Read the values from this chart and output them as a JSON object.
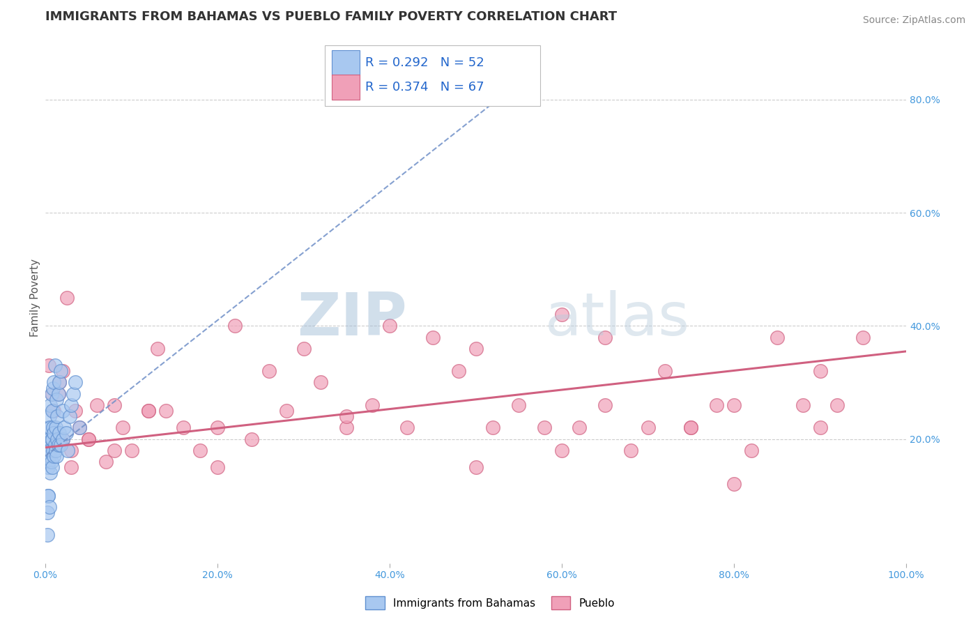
{
  "title": "IMMIGRANTS FROM BAHAMAS VS PUEBLO FAMILY POVERTY CORRELATION CHART",
  "source": "Source: ZipAtlas.com",
  "xlabel": "",
  "ylabel": "Family Poverty",
  "xlim": [
    0,
    1
  ],
  "ylim": [
    -0.02,
    0.92
  ],
  "x_tick_labels": [
    "0.0%",
    "20.0%",
    "40.0%",
    "60.0%",
    "80.0%",
    "100.0%"
  ],
  "x_tick_vals": [
    0,
    0.2,
    0.4,
    0.6,
    0.8,
    1.0
  ],
  "y_tick_labels": [
    "20.0%",
    "40.0%",
    "60.0%",
    "80.0%"
  ],
  "y_tick_vals": [
    0.2,
    0.4,
    0.6,
    0.8
  ],
  "legend1_R": "0.292",
  "legend1_N": "52",
  "legend2_R": "0.374",
  "legend2_N": "67",
  "legend1_label": "Immigrants from Bahamas",
  "legend2_label": "Pueblo",
  "blue_color": "#A8C8F0",
  "pink_color": "#F0A0B8",
  "blue_edge": "#6090D0",
  "pink_edge": "#D06080",
  "blue_trend_color": "#7090C8",
  "pink_trend_color": "#D06080",
  "watermark": "ZIPatlas",
  "watermark_color": "#C8D8EE",
  "bg_color": "#FFFFFF",
  "grid_color": "#CCCCCC",
  "blue_scatter_x": [
    0.002,
    0.003,
    0.003,
    0.004,
    0.004,
    0.004,
    0.005,
    0.005,
    0.005,
    0.006,
    0.006,
    0.006,
    0.006,
    0.007,
    0.007,
    0.007,
    0.008,
    0.008,
    0.008,
    0.009,
    0.009,
    0.009,
    0.01,
    0.01,
    0.01,
    0.011,
    0.011,
    0.012,
    0.012,
    0.013,
    0.013,
    0.014,
    0.014,
    0.015,
    0.015,
    0.016,
    0.016,
    0.018,
    0.018,
    0.02,
    0.02,
    0.022,
    0.024,
    0.026,
    0.028,
    0.03,
    0.032,
    0.035,
    0.04,
    0.002,
    0.003,
    0.005
  ],
  "blue_scatter_y": [
    0.03,
    0.1,
    0.15,
    0.16,
    0.18,
    0.22,
    0.17,
    0.2,
    0.24,
    0.14,
    0.18,
    0.22,
    0.26,
    0.16,
    0.2,
    0.28,
    0.15,
    0.2,
    0.25,
    0.18,
    0.22,
    0.29,
    0.17,
    0.21,
    0.3,
    0.19,
    0.33,
    0.18,
    0.22,
    0.17,
    0.27,
    0.2,
    0.24,
    0.19,
    0.28,
    0.21,
    0.3,
    0.19,
    0.32,
    0.2,
    0.25,
    0.22,
    0.21,
    0.18,
    0.24,
    0.26,
    0.28,
    0.3,
    0.22,
    0.07,
    0.1,
    0.08
  ],
  "pink_scatter_x": [
    0.004,
    0.008,
    0.012,
    0.016,
    0.02,
    0.025,
    0.03,
    0.035,
    0.04,
    0.05,
    0.06,
    0.07,
    0.08,
    0.09,
    0.1,
    0.12,
    0.13,
    0.14,
    0.16,
    0.18,
    0.2,
    0.22,
    0.24,
    0.26,
    0.28,
    0.3,
    0.32,
    0.35,
    0.38,
    0.4,
    0.42,
    0.45,
    0.48,
    0.5,
    0.52,
    0.55,
    0.58,
    0.6,
    0.62,
    0.65,
    0.68,
    0.7,
    0.72,
    0.75,
    0.78,
    0.8,
    0.82,
    0.85,
    0.88,
    0.9,
    0.92,
    0.95,
    0.01,
    0.015,
    0.02,
    0.03,
    0.05,
    0.08,
    0.12,
    0.2,
    0.35,
    0.5,
    0.65,
    0.8,
    0.9,
    0.6,
    0.75
  ],
  "pink_scatter_y": [
    0.33,
    0.28,
    0.2,
    0.3,
    0.32,
    0.45,
    0.15,
    0.25,
    0.22,
    0.2,
    0.26,
    0.16,
    0.26,
    0.22,
    0.18,
    0.25,
    0.36,
    0.25,
    0.22,
    0.18,
    0.22,
    0.4,
    0.2,
    0.32,
    0.25,
    0.36,
    0.3,
    0.22,
    0.26,
    0.4,
    0.22,
    0.38,
    0.32,
    0.15,
    0.22,
    0.26,
    0.22,
    0.18,
    0.22,
    0.26,
    0.18,
    0.22,
    0.32,
    0.22,
    0.26,
    0.26,
    0.18,
    0.38,
    0.26,
    0.22,
    0.26,
    0.38,
    0.25,
    0.28,
    0.2,
    0.18,
    0.2,
    0.18,
    0.25,
    0.15,
    0.24,
    0.36,
    0.38,
    0.12,
    0.32,
    0.42,
    0.22
  ],
  "title_fontsize": 13,
  "axis_label_fontsize": 11,
  "tick_fontsize": 10,
  "legend_fontsize": 13,
  "source_fontsize": 10
}
